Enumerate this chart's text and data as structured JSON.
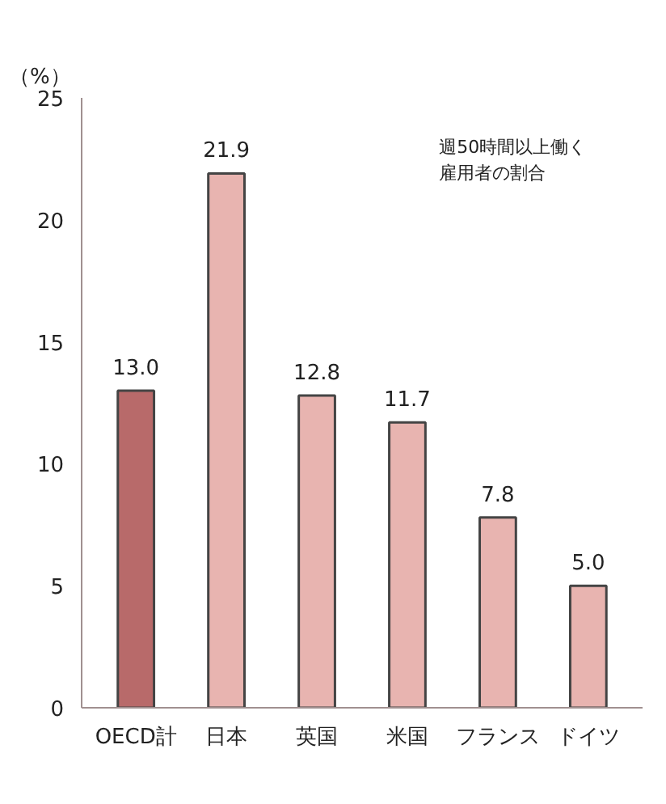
{
  "chart_data": {
    "type": "bar",
    "ylabel": "（%）",
    "categories": [
      "OECD計",
      "日本",
      "英国",
      "米国",
      "フランス",
      "ドイツ"
    ],
    "values": [
      13.0,
      21.9,
      12.8,
      11.7,
      7.8,
      5.0
    ],
    "value_labels": [
      "13.0",
      "21.9",
      "12.8",
      "11.7",
      "7.8",
      "5.0"
    ],
    "colors": [
      "#b86a6a",
      "#e8b4b0",
      "#e8b4b0",
      "#e8b4b0",
      "#e8b4b0",
      "#e8b4b0"
    ],
    "ylim": [
      0,
      25
    ],
    "yticks": [
      0,
      5,
      10,
      15,
      20,
      25
    ],
    "grid": false,
    "annotations": [
      "週50時間以上働く雇用者の割合"
    ]
  }
}
